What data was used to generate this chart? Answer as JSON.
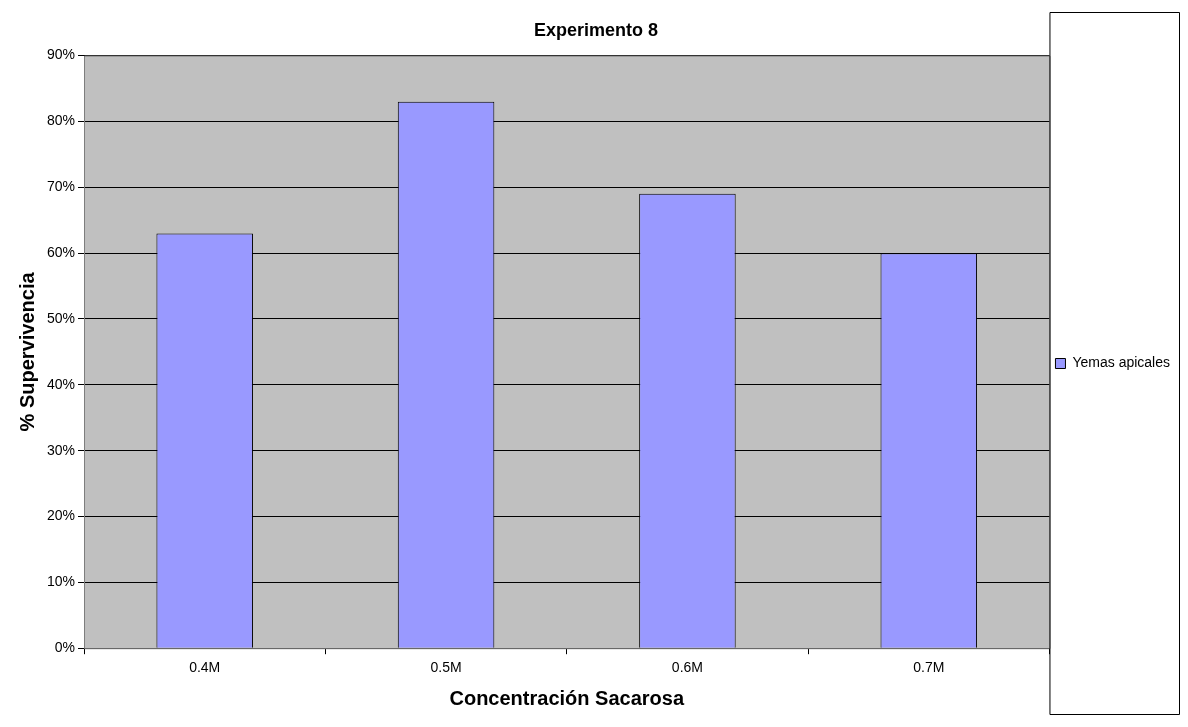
{
  "chart_data": {
    "type": "bar",
    "title": "Experimento 8",
    "xlabel": "Concentración Sacarosa",
    "ylabel": "% Supervivencia",
    "categories": [
      "0.4M",
      "0.5M",
      "0.6M",
      "0.7M"
    ],
    "series": [
      {
        "name": "Yemas apicales",
        "color": "#9999ff",
        "values": [
          63,
          83,
          69,
          60
        ]
      }
    ],
    "ylim": [
      0,
      90
    ],
    "yticks": [
      {
        "value": 0,
        "label": "0%"
      },
      {
        "value": 10,
        "label": "10%"
      },
      {
        "value": 20,
        "label": "20%"
      },
      {
        "value": 30,
        "label": "30%"
      },
      {
        "value": 40,
        "label": "40%"
      },
      {
        "value": 50,
        "label": "50%"
      },
      {
        "value": 60,
        "label": "60%"
      },
      {
        "value": 70,
        "label": "70%"
      },
      {
        "value": 80,
        "label": "80%"
      },
      {
        "value": 90,
        "label": "90%"
      }
    ],
    "grid": "y",
    "legend": "right"
  }
}
